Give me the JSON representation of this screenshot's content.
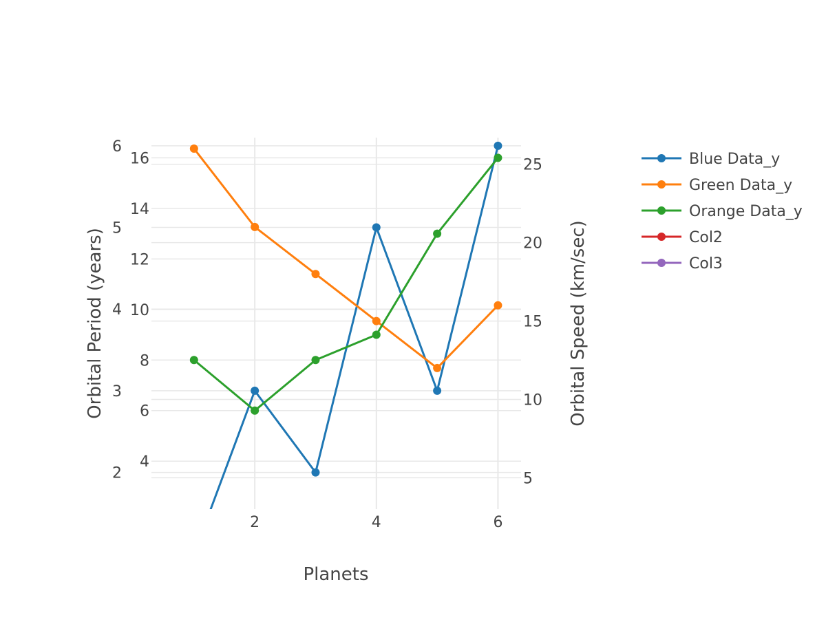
{
  "chart_data": {
    "type": "line",
    "xlabel": "Planets",
    "ylabel_left_outer": "Orbital Period (years)",
    "ylabel_right": "Orbital Speed (km/sec)",
    "x_ticks": [
      2,
      4,
      6
    ],
    "x_range": [
      0.3,
      6.38
    ],
    "axes": {
      "y_left_outer": {
        "ticks": [
          2,
          3,
          4,
          5,
          6
        ],
        "range": [
          1.55,
          6.1
        ]
      },
      "y_left_inner": {
        "ticks": [
          4,
          6,
          8,
          10,
          12,
          14,
          16
        ],
        "range": [
          2.1,
          16.8
        ]
      },
      "y_right": {
        "ticks": [
          5,
          10,
          15,
          20,
          25
        ],
        "range": [
          3.0,
          26.7
        ]
      }
    },
    "series": [
      {
        "name": "Blue Data_y",
        "color": "#1f77b4",
        "axis": "y_left_outer",
        "markers": true,
        "x": [
          1,
          2,
          3,
          4,
          5,
          6
        ],
        "y": [
          1.0,
          3.0,
          2.0,
          5.0,
          3.0,
          6.0
        ]
      },
      {
        "name": "Green Data_y",
        "color": "#ff7f0e",
        "axis": "y_right",
        "markers": true,
        "x": [
          1,
          2,
          3,
          4,
          5,
          6
        ],
        "y": [
          26,
          21,
          18,
          15,
          12,
          16
        ]
      },
      {
        "name": "Orange Data_y",
        "color": "#2ca02c",
        "axis": "y_left_inner",
        "markers": true,
        "x": [
          1,
          2,
          3,
          4,
          5,
          6
        ],
        "y": [
          8,
          6,
          8,
          9,
          13,
          16
        ]
      },
      {
        "name": "Col2",
        "color": "#d62728",
        "axis": "y_left_inner",
        "markers": true,
        "x": [],
        "y": []
      },
      {
        "name": "Col3",
        "color": "#9467bd",
        "axis": "y_left_inner",
        "markers": true,
        "x": [],
        "y": []
      }
    ],
    "legend": {
      "position": "top-right"
    },
    "grid": true
  }
}
